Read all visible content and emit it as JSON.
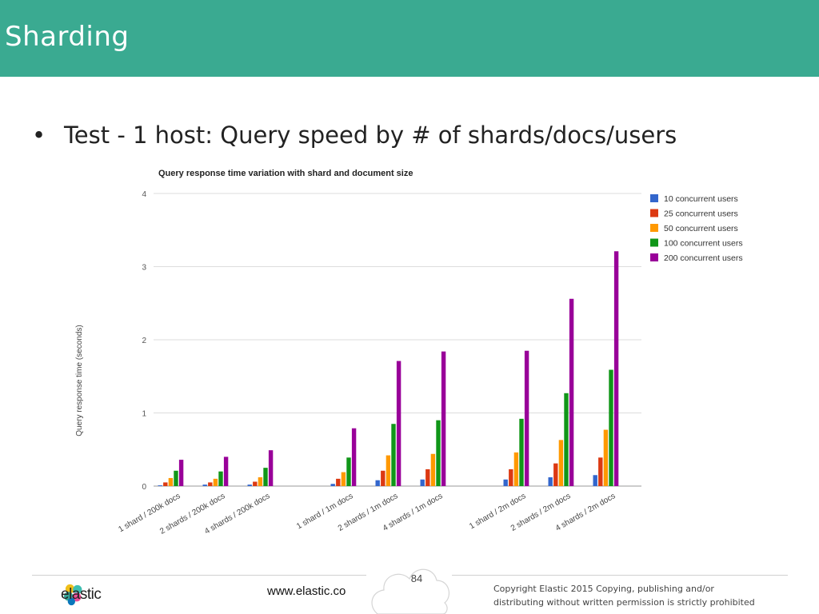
{
  "header": {
    "title": "Sharding"
  },
  "bullet": {
    "marker": "•",
    "text": "Test - 1 host: Query speed by # of shards/docs/users"
  },
  "footer": {
    "brand": "elastic",
    "website": "www.elastic.co",
    "page_number": "84",
    "copyright_line1": "Copyright Elastic 2015 Copying, publishing and/or",
    "copyright_line2": "distributing without written permission is strictly prohibited"
  },
  "chart_data": {
    "type": "bar",
    "title": "Query response time variation with shard and document size",
    "xlabel": "",
    "ylabel": "Query response time (seconds)",
    "ylim": [
      0,
      4
    ],
    "yticks": [
      "0",
      "1",
      "2",
      "3",
      "4"
    ],
    "grid": true,
    "legend_position": "right",
    "categories": [
      "1 shard / 200k docs",
      "2 shards / 200k docs",
      "4 shards / 200k docs",
      "1 shard / 1m docs",
      "2 shards / 1m docs",
      "4 shards / 1m docs",
      "1 shard / 2m docs",
      "2 shards / 2m docs",
      "4 shards / 2m docs"
    ],
    "series": [
      {
        "name": "10 concurrent users",
        "color": "#3366cc",
        "values": [
          0.01,
          0.02,
          0.02,
          0.03,
          0.08,
          0.09,
          0.09,
          0.12,
          0.15
        ]
      },
      {
        "name": "25 concurrent users",
        "color": "#dc3912",
        "values": [
          0.05,
          0.05,
          0.06,
          0.1,
          0.21,
          0.23,
          0.23,
          0.31,
          0.39
        ]
      },
      {
        "name": "50 concurrent users",
        "color": "#ff9900",
        "values": [
          0.11,
          0.1,
          0.12,
          0.19,
          0.42,
          0.44,
          0.46,
          0.63,
          0.77
        ]
      },
      {
        "name": "100 concurrent users",
        "color": "#109618",
        "values": [
          0.21,
          0.2,
          0.25,
          0.39,
          0.85,
          0.9,
          0.92,
          1.27,
          1.59
        ]
      },
      {
        "name": "200 concurrent users",
        "color": "#990099",
        "values": [
          0.36,
          0.4,
          0.49,
          0.79,
          1.71,
          1.84,
          1.85,
          2.56,
          3.21
        ]
      }
    ]
  }
}
